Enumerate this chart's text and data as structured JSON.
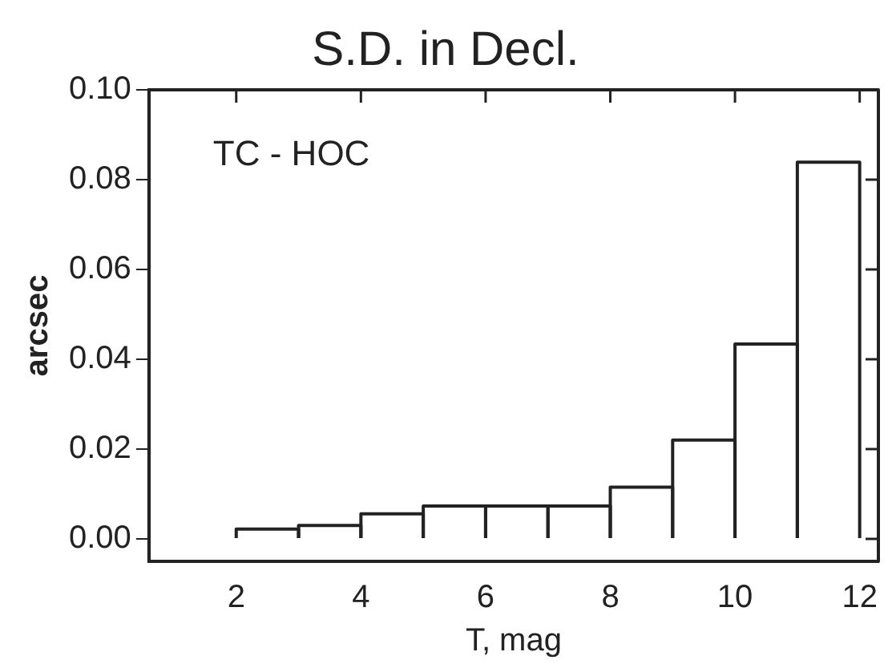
{
  "chart_data": {
    "type": "histogram",
    "title": "S.D. in Decl.",
    "xlabel": "T, mag",
    "ylabel": "arcsec",
    "annotations": [
      "TC - HOC"
    ],
    "bins": [
      2,
      3,
      4,
      5,
      6,
      7,
      8,
      9,
      10,
      11,
      12
    ],
    "values": [
      0.0022,
      0.003,
      0.0056,
      0.0073,
      0.0073,
      0.0073,
      0.0115,
      0.022,
      0.0434,
      0.0839
    ],
    "color": "#222222",
    "xlim": [
      0.6,
      12.3
    ],
    "xticks": [
      2,
      4,
      6,
      8,
      10,
      12
    ],
    "ylim": [
      -0.005,
      0.1
    ],
    "yticks": [
      {
        "value": 0,
        "label": "0.00"
      },
      {
        "value": 0.02,
        "label": "0.02"
      },
      {
        "value": 0.04,
        "label": "0.04"
      },
      {
        "value": 0.06,
        "label": "0.06"
      },
      {
        "value": 0.08,
        "label": "0.08"
      },
      {
        "value": 0.1,
        "label": "0.10"
      }
    ],
    "grid": false,
    "legend": false
  }
}
